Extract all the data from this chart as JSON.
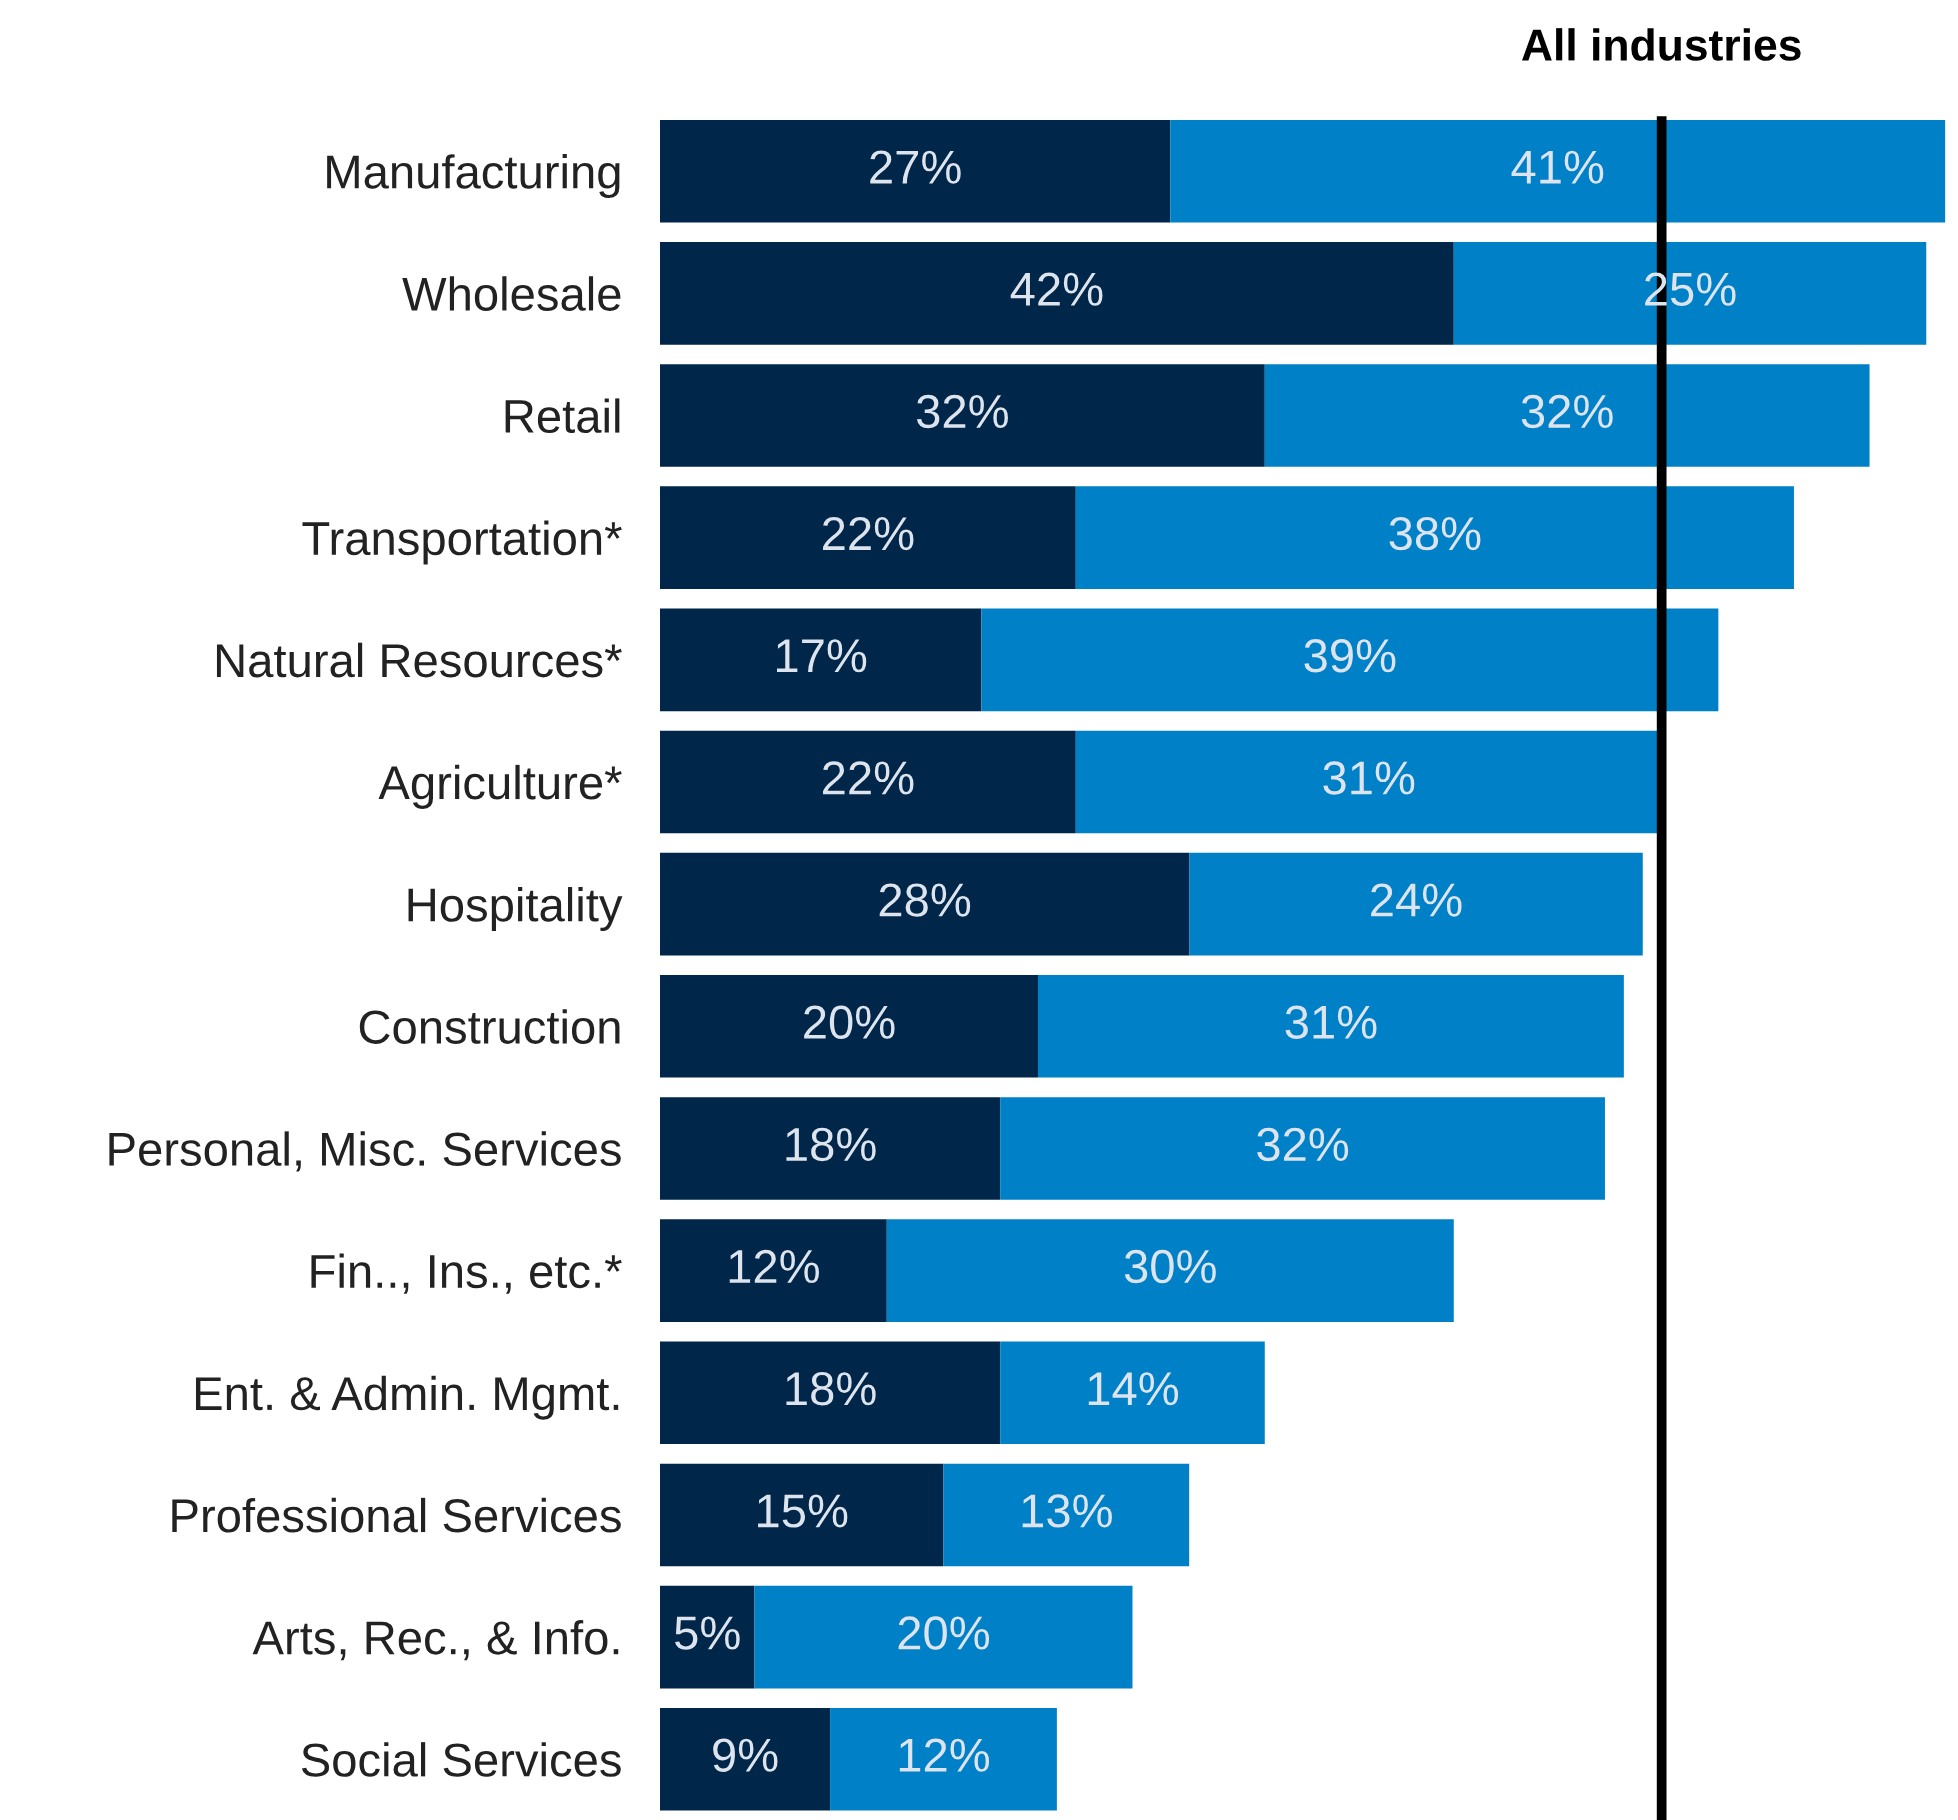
{
  "chart_data": {
    "type": "bar",
    "orientation": "horizontal",
    "stacked": true,
    "categories": [
      "Manufacturing",
      "Wholesale",
      "Retail",
      "Transportation*",
      "Natural Resources*",
      "Agriculture*",
      "Hospitality",
      "Construction",
      "Personal, Misc. Services",
      "Fin.., Ins., etc.*",
      "Ent. & Admin. Mgmt.",
      "Professional Services",
      "Arts, Rec., & Info.",
      "Social Services"
    ],
    "series": [
      {
        "color": "#002649",
        "values": [
          27,
          42,
          32,
          22,
          17,
          22,
          28,
          20,
          18,
          12,
          18,
          15,
          5,
          9
        ],
        "value_labels": [
          "27%",
          "42%",
          "32%",
          "22%",
          "17%",
          "22%",
          "28%",
          "20%",
          "18%",
          "12%",
          "18%",
          "15%",
          "5%",
          "9%"
        ]
      },
      {
        "color": "#0080c6",
        "values": [
          41,
          25,
          32,
          38,
          39,
          31,
          24,
          31,
          32,
          30,
          14,
          13,
          20,
          12
        ],
        "value_labels": [
          "41%",
          "25%",
          "32%",
          "38%",
          "39%",
          "31%",
          "24%",
          "31%",
          "32%",
          "30%",
          "14%",
          "13%",
          "20%",
          "12%"
        ]
      }
    ],
    "tick_labels": "y",
    "grid": false,
    "legend": false,
    "ref_lines": [
      {
        "axis": "x",
        "value": 53,
        "label": "All industries",
        "color": "#000000"
      }
    ]
  }
}
